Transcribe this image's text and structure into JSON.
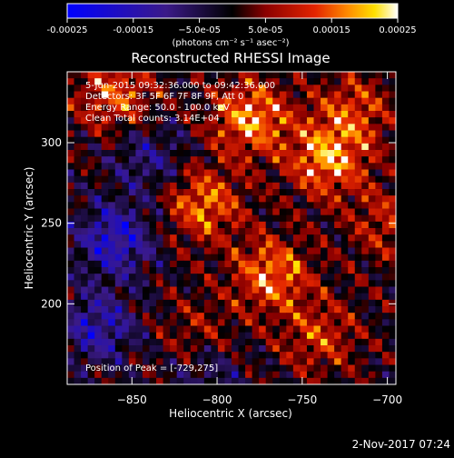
{
  "chart_data": {
    "type": "heatmap",
    "title": "Reconstructed RHESSI Image",
    "xlabel": "Heliocentric X (arcsec)",
    "ylabel": "Heliocentric Y (arcsec)",
    "xlim": [
      -888,
      -695
    ],
    "ylim": [
      150,
      344
    ],
    "x_ticks": [
      -850,
      -800,
      -750,
      -700
    ],
    "x_tick_labels": [
      "−850",
      "−800",
      "−750",
      "−700"
    ],
    "y_ticks": [
      200,
      250,
      300
    ],
    "y_tick_labels": [
      "200",
      "250",
      "300"
    ],
    "colorbar": {
      "min": -0.00025,
      "max": 0.00025,
      "ticks": [
        -0.00025,
        -0.00015,
        -5e-05,
        5e-05,
        0.00015,
        0.00025
      ],
      "tick_labels": [
        "-0.00025",
        "-0.00015",
        "−5.0e-05",
        "5.0e-05",
        "0.00015",
        "0.00025"
      ],
      "label": "(photons cm⁻² s⁻¹ asec⁻²)",
      "colors": [
        "#0000ff",
        "#3b1a88",
        "#000000",
        "#8b0000",
        "#e32400",
        "#ff8c00",
        "#ffe000",
        "#ffffff"
      ]
    },
    "annotations": [
      "5-Jun-2015 09:32:36.000 to 09:42:36.000",
      "Detectors: 3F 5F 6F 7F 8F 9F, Att 0",
      "Energy Range: 50.0 - 100.0 keV",
      "Clean    Total counts: 3.14E+04"
    ],
    "peak_label": "Position of Peak = [-729,275]",
    "hotspots": [
      {
        "x": -780,
        "y": 315,
        "amp": 0.00025
      },
      {
        "x": -735,
        "y": 290,
        "amp": 0.00025
      },
      {
        "x": -768,
        "y": 218,
        "amp": 0.00022
      },
      {
        "x": -808,
        "y": 262,
        "amp": 0.0002
      },
      {
        "x": -860,
        "y": 330,
        "amp": 0.00018
      },
      {
        "x": -720,
        "y": 320,
        "amp": 0.00015
      },
      {
        "x": -740,
        "y": 180,
        "amp": 0.00014
      },
      {
        "x": -700,
        "y": 250,
        "amp": 0.00012
      },
      {
        "x": -810,
        "y": 180,
        "amp": 0.0001
      }
    ],
    "coldspots": [
      {
        "x": -860,
        "y": 240,
        "amp": -0.00022
      },
      {
        "x": -870,
        "y": 185,
        "amp": -0.00018
      },
      {
        "x": -840,
        "y": 290,
        "amp": -0.00012
      },
      {
        "x": -805,
        "y": 160,
        "amp": -0.0001
      }
    ]
  },
  "footer": {
    "date": "2-Nov-2017 07:24"
  }
}
